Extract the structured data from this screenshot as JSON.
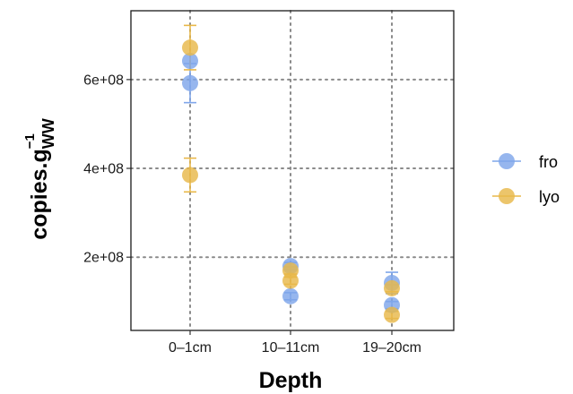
{
  "chart_data": {
    "type": "scatter",
    "title": "",
    "xlabel": "Depth",
    "ylabel": {
      "base": "copies.g",
      "subscript": "WW",
      "superscript": "−1"
    },
    "categories": [
      "0–1cm",
      "10–11cm",
      "19–20cm"
    ],
    "y_ticks": [
      {
        "value": 200000000,
        "label": "2e+08"
      },
      {
        "value": 400000000,
        "label": "4e+08"
      },
      {
        "value": 600000000,
        "label": "6e+08"
      }
    ],
    "ylim": [
      35000000,
      755000000
    ],
    "grid": "dotted, major ticks only",
    "legend_position": "right",
    "series": [
      {
        "name": "fro",
        "color": "#7fa6ea",
        "points": [
          {
            "category": "0–1cm",
            "y": 642000000,
            "ymin": 642000000,
            "ymax": 642000000
          },
          {
            "category": "0–1cm",
            "y": 592000000,
            "ymin": 548000000,
            "ymax": 636000000
          },
          {
            "category": "10–11cm",
            "y": 180000000,
            "ymin": 172000000,
            "ymax": 188000000
          },
          {
            "category": "10–11cm",
            "y": 112000000,
            "ymin": 104000000,
            "ymax": 120000000
          },
          {
            "category": "19–20cm",
            "y": 142000000,
            "ymin": 118000000,
            "ymax": 166000000
          },
          {
            "category": "19–20cm",
            "y": 92000000,
            "ymin": 84000000,
            "ymax": 100000000
          }
        ]
      },
      {
        "name": "lyo",
        "color": "#e8b84a",
        "points": [
          {
            "category": "0–1cm",
            "y": 672000000,
            "ymin": 622000000,
            "ymax": 722000000
          },
          {
            "category": "0–1cm",
            "y": 385000000,
            "ymin": 347000000,
            "ymax": 423000000
          },
          {
            "category": "10–11cm",
            "y": 170000000,
            "ymin": 162000000,
            "ymax": 178000000
          },
          {
            "category": "10–11cm",
            "y": 147000000,
            "ymin": 139000000,
            "ymax": 155000000
          },
          {
            "category": "19–20cm",
            "y": 130000000,
            "ymin": 122000000,
            "ymax": 138000000
          },
          {
            "category": "19–20cm",
            "y": 70000000,
            "ymin": 62000000,
            "ymax": 78000000
          }
        ]
      }
    ]
  }
}
